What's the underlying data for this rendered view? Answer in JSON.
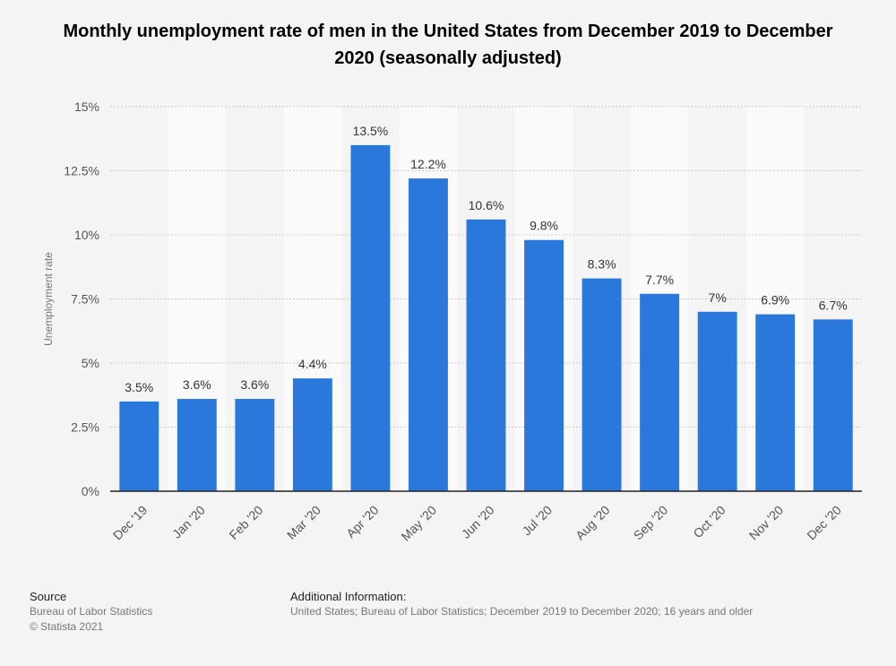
{
  "chart_data": {
    "type": "bar",
    "title": "Monthly unemployment rate of men in the United States from December 2019 to December 2020 (seasonally adjusted)",
    "ylabel": "Unemployment rate",
    "xlabel": "",
    "categories": [
      "Dec '19",
      "Jan '20",
      "Feb '20",
      "Mar '20",
      "Apr '20",
      "May '20",
      "Jun '20",
      "Jul '20",
      "Aug '20",
      "Sep '20",
      "Oct '20",
      "Nov '20",
      "Dec '20"
    ],
    "values": [
      3.5,
      3.6,
      3.6,
      4.4,
      13.5,
      12.2,
      10.6,
      9.8,
      8.3,
      7.7,
      7,
      6.9,
      6.7
    ],
    "value_labels": [
      "3.5%",
      "3.6%",
      "3.6%",
      "4.4%",
      "13.5%",
      "12.2%",
      "10.6%",
      "9.8%",
      "8.3%",
      "7.7%",
      "7%",
      "6.9%",
      "6.7%"
    ],
    "yticks": [
      0,
      2.5,
      5,
      7.5,
      10,
      12.5,
      15
    ],
    "ytick_labels": [
      "0%",
      "2.5%",
      "5%",
      "7.5%",
      "10%",
      "12.5%",
      "15%"
    ],
    "ylim": [
      0,
      15
    ],
    "grid": true,
    "bar_color": "#2a78dc"
  },
  "footer": {
    "source_heading": "Source",
    "source_lines": [
      "Bureau of Labor Statistics",
      "© Statista 2021"
    ],
    "info_heading": "Additional Information:",
    "info_text": "United States; Bureau of Labor Statistics; December 2019 to December 2020; 16 years and older"
  }
}
